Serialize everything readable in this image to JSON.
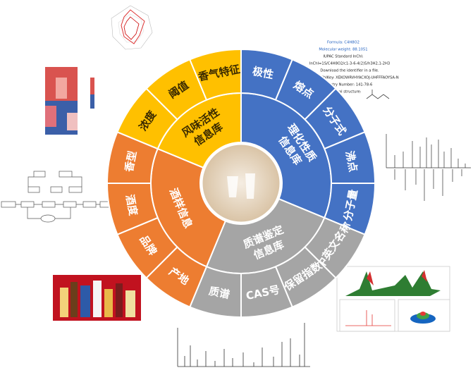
{
  "sectors": [
    {
      "label_lines": [
        "理化性质",
        "信息库"
      ],
      "items": [
        "极性",
        "熔点",
        "分子式",
        "沸点",
        "分子量"
      ]
    },
    {
      "label_lines": [
        "质谱鉴定",
        "信息库"
      ],
      "items": [
        "中英文名称",
        "保留指数",
        "CAS号",
        "质谱"
      ]
    },
    {
      "label_lines": [
        "酒样信息"
      ],
      "items": [
        "产地",
        "品牌",
        "酒度",
        "香型"
      ]
    },
    {
      "label_lines": [
        "风味活性",
        "信息库"
      ],
      "items": [
        "浓度",
        "阈值",
        "香气特征"
      ]
    }
  ],
  "compound_info": [
    "Formula: C4H8O2",
    "Molecular weight: 88.1051",
    "IUPAC Standard InChI:",
    "InChI=1S/C4H8O2/c1-3-6-4(2)5/h3H2,1-2H3",
    "Download the identifier in a file.",
    "IUPAC Standard InChIKey: XEKOWRVHYACXOJ-UHFFFAOYSA-N",
    "CAS Registry Number: 141-78-6",
    "Chemical structure:"
  ]
}
